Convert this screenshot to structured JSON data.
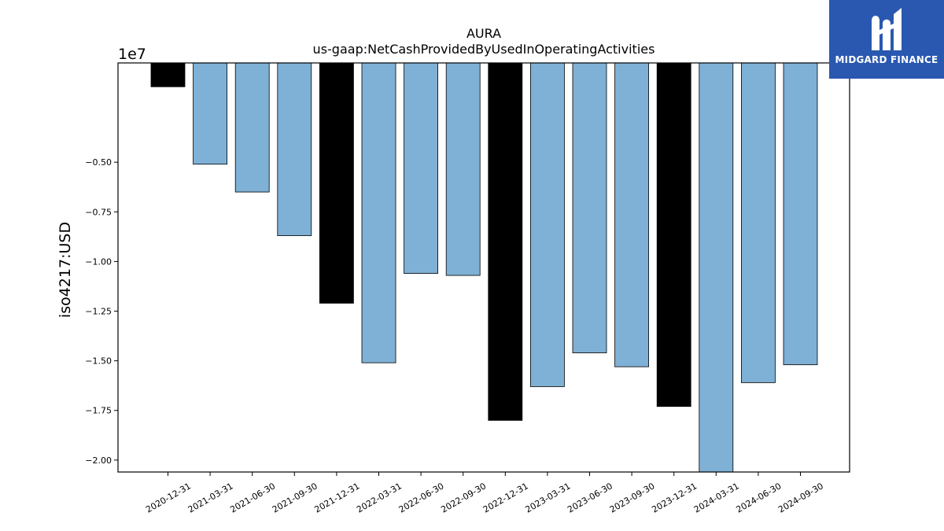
{
  "chart_data": {
    "type": "bar",
    "title": "AURA",
    "subtitle": "us-gaap:NetCashProvidedByUsedInOperatingActivities",
    "ylabel": "iso4217:USD",
    "xlabel": "",
    "offset_label": "1e7",
    "scale": 10000000,
    "ylim": [
      -2.06,
      0
    ],
    "yticks": [
      -0.5,
      -0.75,
      -1.0,
      -1.25,
      -1.5,
      -1.75,
      -2.0
    ],
    "ytick_labels": [
      "−0.50",
      "−0.75",
      "−1.00",
      "−1.25",
      "−1.50",
      "−1.75",
      "−2.00"
    ],
    "categories": [
      "2020-12-31",
      "2021-03-31",
      "2021-06-30",
      "2021-09-30",
      "2021-12-31",
      "2022-03-31",
      "2022-06-30",
      "2022-09-30",
      "2022-12-31",
      "2023-03-31",
      "2023-06-30",
      "2023-09-30",
      "2023-12-31",
      "2024-03-31",
      "2024-06-30",
      "2024-09-30"
    ],
    "values": [
      -0.12,
      -0.51,
      -0.65,
      -0.87,
      -1.21,
      -1.51,
      -1.06,
      -1.07,
      -1.8,
      -1.63,
      -1.46,
      -1.53,
      -1.73,
      -2.06,
      -1.61,
      -1.52
    ],
    "bar_colors": [
      "#000000",
      "#7fb0d5",
      "#7fb0d5",
      "#7fb0d5",
      "#000000",
      "#7fb0d5",
      "#7fb0d5",
      "#7fb0d5",
      "#000000",
      "#7fb0d5",
      "#7fb0d5",
      "#7fb0d5",
      "#000000",
      "#7fb0d5",
      "#7fb0d5",
      "#7fb0d5"
    ],
    "grid": false,
    "legend": "none"
  },
  "logo": {
    "text": "MIDGARD FINANCE",
    "background": "#2a58b0",
    "icon": "midgard-logo-icon"
  }
}
